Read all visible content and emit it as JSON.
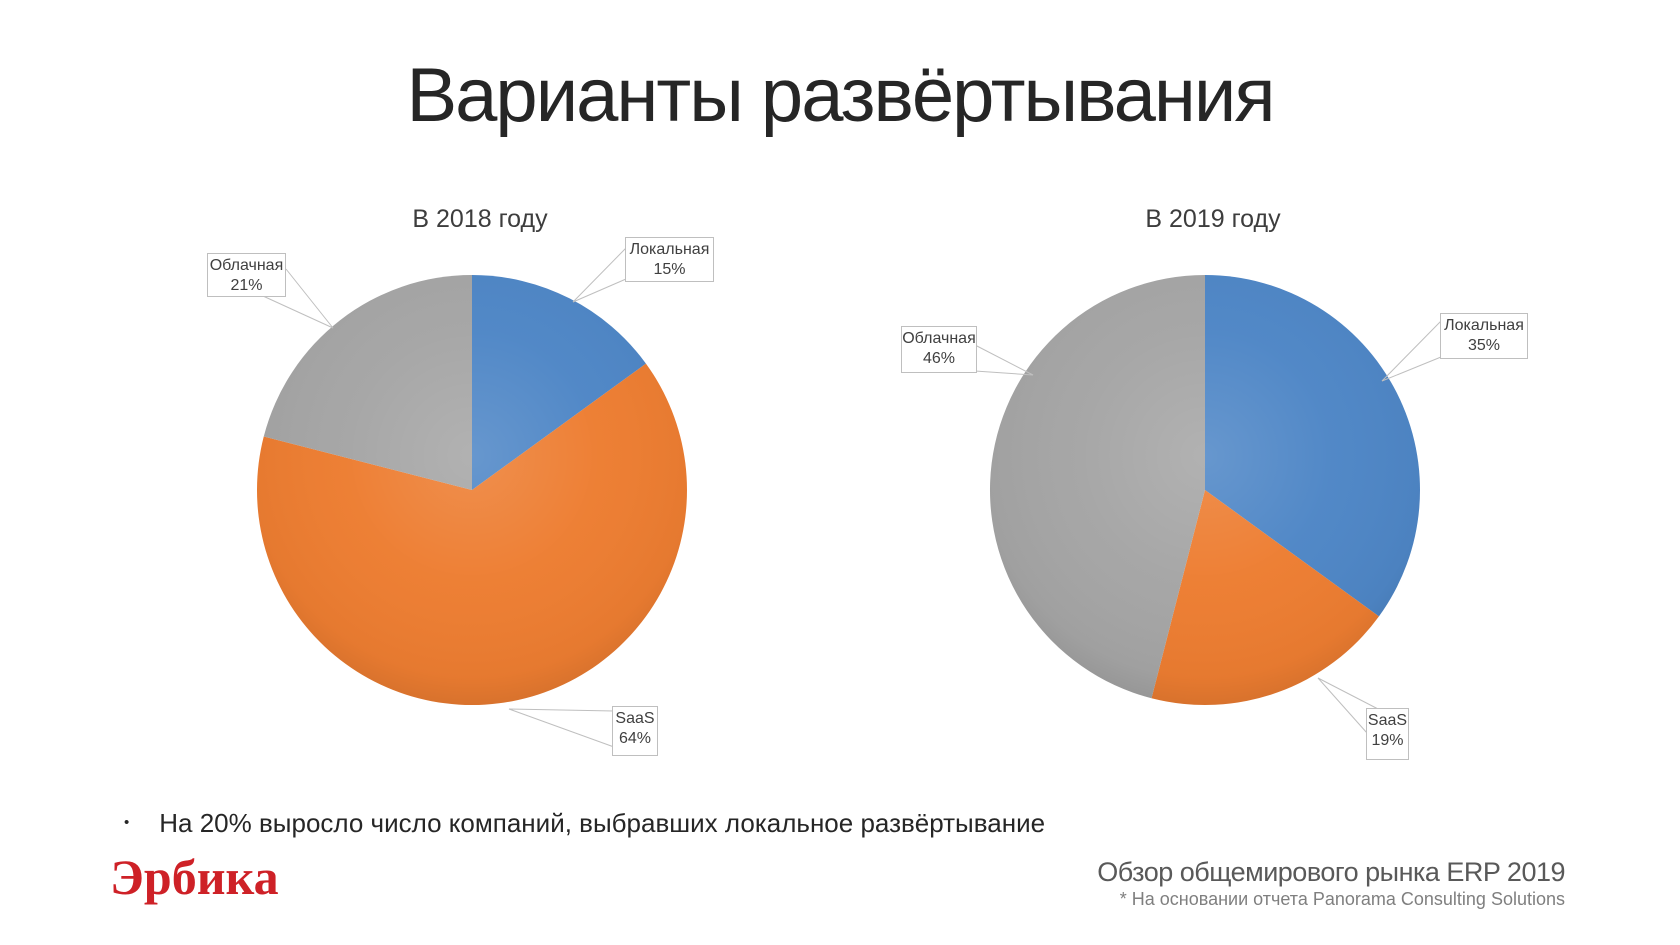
{
  "slide": {
    "title": "Варианты развёртывания",
    "bullet_marker": "•",
    "bullet_text": "На 20% выросло число компаний, выбравших локальное развёртывание",
    "logo_text": "Эрбика",
    "footer": {
      "line1": "Обзор общемирового рынка ERP 2019",
      "line2": "* На основании отчета Panorama Consulting Solutions"
    }
  },
  "colors": {
    "blue": "#4E86C6",
    "orange": "#ED7D31",
    "gray": "#A5A5A5",
    "logo_red": "#CE2127",
    "callout_border": "#BFBFBF",
    "callout_text": "#404040",
    "title_text": "#262626"
  },
  "chart_data": [
    {
      "type": "pie",
      "title": "В 2018 году",
      "start_angle_deg": 0,
      "direction": "clockwise",
      "legend": "none",
      "slices": [
        {
          "label": "Локальная",
          "value": 15,
          "percent_label": "15%",
          "color": "#4E86C6"
        },
        {
          "label": "SaaS",
          "value": 64,
          "percent_label": "64%",
          "color": "#ED7D31"
        },
        {
          "label": "Облачная",
          "value": 21,
          "percent_label": "21%",
          "color": "#A5A5A5"
        }
      ]
    },
    {
      "type": "pie",
      "title": "В 2019 году",
      "start_angle_deg": 0,
      "direction": "clockwise",
      "legend": "none",
      "slices": [
        {
          "label": "Локальная",
          "value": 35,
          "percent_label": "35%",
          "color": "#4E86C6"
        },
        {
          "label": "SaaS",
          "value": 19,
          "percent_label": "19%",
          "color": "#ED7D31"
        },
        {
          "label": "Облачная",
          "value": 46,
          "percent_label": "46%",
          "color": "#A5A5A5"
        }
      ]
    }
  ]
}
